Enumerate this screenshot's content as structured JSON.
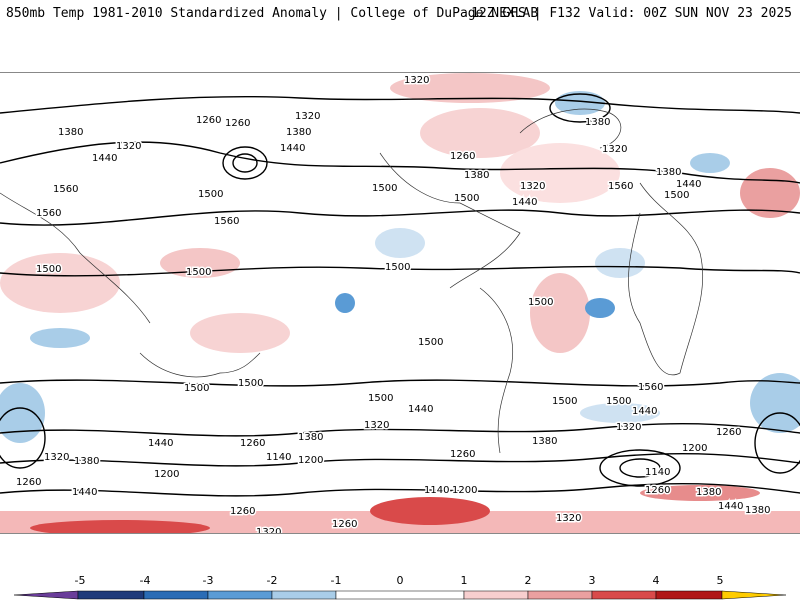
{
  "header": {
    "title_left": "850mb Temp 1981-2010 Standardized Anomaly | College of DuPage NEXLAB",
    "title_right": "12Z GFS | F132 Valid: 00Z SUN NOV 23 2025"
  },
  "colorbar": {
    "ticks": [
      "-5",
      "-4",
      "-3",
      "-2",
      "-1",
      "0",
      "1",
      "2",
      "3",
      "4",
      "5"
    ],
    "colors": [
      "#6a3d9a",
      "#1f3a7a",
      "#2b6cb5",
      "#5a9bd5",
      "#a9cde8",
      "#ffffff",
      "#f7cfcf",
      "#eaa0a0",
      "#d94a4a",
      "#b01818",
      "#7a0000",
      "#ffcc00"
    ]
  },
  "contour_labels": [
    {
      "text": "1320"
    },
    {
      "text": "1380"
    },
    {
      "text": "1320"
    },
    {
      "text": "1440"
    },
    {
      "text": "1260"
    },
    {
      "text": "1260"
    },
    {
      "text": "1320"
    },
    {
      "text": "1380"
    },
    {
      "text": "1440"
    },
    {
      "text": "1500"
    },
    {
      "text": "1560"
    },
    {
      "text": "1560"
    },
    {
      "text": "1560"
    },
    {
      "text": "1500"
    },
    {
      "text": "1260"
    },
    {
      "text": "1380"
    },
    {
      "text": "1500"
    },
    {
      "text": "1320"
    },
    {
      "text": "1440"
    },
    {
      "text": "1380"
    },
    {
      "text": "1320"
    },
    {
      "text": "1560"
    },
    {
      "text": "1380"
    },
    {
      "text": "1440"
    },
    {
      "text": "1500"
    },
    {
      "text": "1500"
    },
    {
      "text": "1500"
    },
    {
      "text": "1500"
    },
    {
      "text": "1500"
    },
    {
      "text": "1500"
    },
    {
      "text": "1500"
    },
    {
      "text": "1500"
    },
    {
      "text": "1500"
    },
    {
      "text": "1560"
    },
    {
      "text": "1500"
    },
    {
      "text": "1500"
    },
    {
      "text": "1440"
    },
    {
      "text": "1440"
    },
    {
      "text": "1440"
    },
    {
      "text": "1320"
    },
    {
      "text": "1380"
    },
    {
      "text": "1260"
    },
    {
      "text": "1380"
    },
    {
      "text": "1320"
    },
    {
      "text": "1260"
    },
    {
      "text": "1140"
    },
    {
      "text": "1200"
    },
    {
      "text": "1200"
    },
    {
      "text": "1260"
    },
    {
      "text": "1380"
    },
    {
      "text": "1320"
    },
    {
      "text": "1200"
    },
    {
      "text": "1140"
    },
    {
      "text": "1260"
    },
    {
      "text": "1260"
    },
    {
      "text": "1440"
    },
    {
      "text": "1140"
    },
    {
      "text": "1200"
    },
    {
      "text": "1260"
    },
    {
      "text": "1380"
    },
    {
      "text": "1440"
    },
    {
      "text": "1380"
    },
    {
      "text": "1320"
    },
    {
      "text": "1320"
    },
    {
      "text": "1260"
    }
  ]
}
